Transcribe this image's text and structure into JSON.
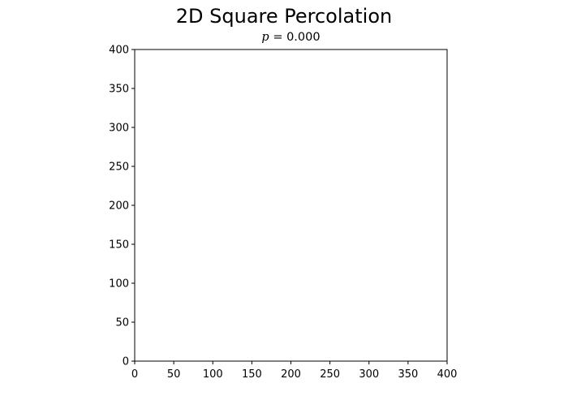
{
  "chart_data": {
    "type": "heatmap",
    "title": "2D Square Percolation",
    "subtitle": {
      "variable": "p",
      "operator": "=",
      "value": "0.000"
    },
    "xlabel": "",
    "ylabel": "",
    "xlim": [
      0,
      400
    ],
    "ylim": [
      0,
      400
    ],
    "x_ticks": [
      0,
      50,
      100,
      150,
      200,
      250,
      300,
      350,
      400
    ],
    "y_ticks": [
      0,
      50,
      100,
      150,
      200,
      250,
      300,
      350,
      400
    ],
    "x_tick_labels": [
      "0",
      "50",
      "100",
      "150",
      "200",
      "250",
      "300",
      "350",
      "400"
    ],
    "y_tick_labels": [
      "0",
      "50",
      "100",
      "150",
      "200",
      "250",
      "300",
      "350",
      "400"
    ],
    "grid": false,
    "occupied_fraction": 0.0,
    "colors": {
      "background": "#ffffff",
      "axis": "#000000"
    }
  }
}
